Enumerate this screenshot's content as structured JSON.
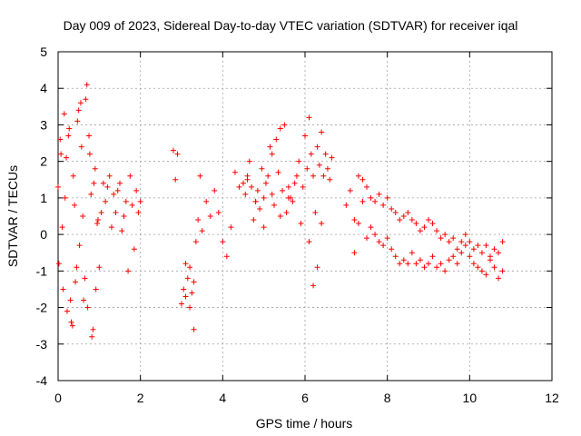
{
  "chart_data": {
    "type": "scatter",
    "title": "Day 009 of 2023, Sidereal Day-to-day VTEC variation (SDTVAR) for receiver iqal",
    "xlabel": "GPS time / hours",
    "ylabel": "SDTVAR / TECUs",
    "xlim": [
      0,
      12
    ],
    "ylim": [
      -4,
      5
    ],
    "x_ticks": [
      "0",
      "2",
      "4",
      "6",
      "8",
      "10",
      "12"
    ],
    "y_ticks": [
      "-4",
      "-3",
      "-2",
      "-1",
      "0",
      "1",
      "2",
      "3",
      "4",
      "5"
    ],
    "grid": true,
    "marker": "+",
    "series_color": "#ff0000",
    "series": [
      {
        "name": "SDTVAR",
        "x": [
          0.0,
          0.05,
          0.1,
          0.15,
          0.2,
          0.25,
          0.3,
          0.35,
          0.4,
          0.45,
          0.5,
          0.55,
          0.6,
          0.65,
          0.7,
          0.75,
          0.8,
          0.85,
          0.9,
          0.95,
          1.0,
          1.05,
          1.1,
          1.15,
          1.2,
          1.25,
          1.3,
          1.35,
          1.4,
          1.45,
          1.5,
          1.55,
          1.6,
          1.65,
          1.7,
          1.75,
          1.8,
          1.85,
          1.9,
          1.95,
          2.0,
          0.02,
          0.07,
          0.12,
          0.17,
          0.22,
          0.27,
          0.32,
          0.37,
          0.42,
          0.47,
          0.52,
          0.57,
          0.62,
          0.67,
          0.72,
          0.77,
          0.82,
          0.87,
          0.92,
          0.97,
          2.8,
          2.85,
          2.9,
          3.0,
          3.05,
          3.1,
          3.15,
          3.2,
          3.25,
          3.3,
          3.35,
          3.4,
          3.45,
          3.5,
          3.6,
          3.7,
          3.8,
          3.9,
          4.0,
          4.1,
          4.2,
          4.3,
          4.4,
          4.5,
          4.55,
          4.6,
          4.65,
          4.7,
          4.75,
          4.8,
          4.85,
          4.9,
          4.95,
          5.0,
          5.05,
          5.1,
          5.15,
          5.2,
          5.25,
          5.3,
          5.35,
          5.4,
          5.45,
          5.5,
          5.55,
          5.6,
          5.65,
          5.7,
          5.75,
          5.8,
          5.85,
          5.9,
          5.95,
          6.0,
          6.05,
          6.1,
          6.15,
          6.2,
          6.25,
          6.3,
          6.35,
          6.4,
          6.45,
          6.5,
          6.55,
          6.6,
          6.65,
          3.1,
          3.2,
          3.3,
          4.6,
          4.8,
          5.0,
          5.2,
          5.4,
          5.6,
          6.1,
          6.2,
          6.3,
          6.4,
          7.0,
          7.1,
          7.2,
          7.3,
          7.4,
          7.5,
          7.6,
          7.7,
          7.8,
          7.9,
          8.0,
          8.1,
          8.2,
          8.3,
          8.4,
          8.5,
          8.6,
          8.7,
          8.8,
          8.9,
          9.0,
          9.1,
          9.2,
          9.3,
          9.4,
          9.5,
          9.6,
          9.7,
          9.8,
          9.9,
          10.0,
          10.1,
          10.2,
          10.3,
          10.4,
          10.5,
          10.6,
          10.7,
          10.8,
          7.2,
          7.3,
          7.4,
          7.5,
          7.6,
          7.7,
          7.8,
          7.9,
          8.0,
          8.1,
          8.2,
          8.3,
          8.4,
          8.5,
          8.6,
          8.7,
          8.8,
          8.9,
          9.0,
          9.1,
          9.2,
          9.3,
          9.4,
          9.5,
          9.6,
          9.7,
          9.8,
          9.9,
          10.0,
          10.1,
          10.2,
          10.3,
          10.4,
          10.5,
          10.6,
          10.7,
          10.8
        ],
        "y": [
          1.3,
          2.6,
          0.2,
          3.3,
          2.1,
          2.7,
          -1.8,
          -2.5,
          0.8,
          -0.9,
          3.4,
          3.6,
          0.5,
          -1.2,
          4.1,
          2.7,
          1.1,
          -2.6,
          1.8,
          0.3,
          -0.9,
          0.6,
          1.4,
          0.9,
          1.3,
          1.6,
          0.2,
          1.1,
          0.6,
          1.2,
          1.4,
          0.1,
          0.5,
          0.9,
          -1.0,
          1.6,
          0.8,
          -0.4,
          1.2,
          0.6,
          0.9,
          -0.8,
          2.2,
          -1.5,
          1.0,
          -2.1,
          2.9,
          -2.4,
          1.6,
          -1.3,
          3.1,
          -0.3,
          2.4,
          -1.8,
          3.7,
          -2.0,
          2.2,
          -2.8,
          1.4,
          -1.5,
          0.4,
          2.3,
          1.5,
          2.2,
          -1.9,
          -1.5,
          -0.8,
          -1.2,
          -2.0,
          -1.6,
          -1.3,
          -0.2,
          0.4,
          1.6,
          0.1,
          0.9,
          0.5,
          1.2,
          0.6,
          -0.2,
          -0.6,
          0.2,
          1.7,
          1.3,
          1.4,
          1.1,
          1.5,
          2.0,
          1.3,
          0.4,
          0.9,
          1.2,
          0.7,
          1.8,
          1.0,
          1.4,
          1.6,
          2.4,
          1.1,
          0.8,
          2.6,
          1.7,
          2.9,
          1.2,
          3.0,
          0.6,
          1.3,
          1.0,
          0.9,
          1.4,
          1.6,
          2.0,
          0.3,
          1.3,
          2.7,
          1.8,
          3.2,
          2.2,
          1.6,
          0.6,
          2.4,
          1.9,
          2.8,
          1.6,
          2.2,
          1.8,
          1.5,
          2.1,
          -1.7,
          -0.9,
          -2.6,
          1.6,
          0.9,
          0.2,
          2.2,
          0.5,
          1.0,
          -0.2,
          -1.4,
          -0.9,
          0.3,
          0.8,
          1.2,
          0.4,
          1.6,
          1.5,
          1.3,
          1.0,
          0.9,
          1.1,
          0.8,
          1.0,
          0.7,
          0.6,
          0.4,
          0.5,
          0.6,
          0.4,
          0.3,
          0.1,
          0.2,
          0.4,
          0.3,
          0.1,
          -0.1,
          0.0,
          -0.2,
          -0.1,
          -0.4,
          -0.2,
          0.0,
          -0.2,
          -0.4,
          -0.3,
          -0.5,
          -0.3,
          -0.6,
          -0.4,
          -0.5,
          -0.2,
          -0.5,
          0.3,
          0.9,
          -0.1,
          0.2,
          0.0,
          -0.2,
          -0.3,
          -0.1,
          -0.4,
          -0.6,
          -0.8,
          -0.7,
          -0.8,
          -0.5,
          -0.8,
          -0.7,
          -0.9,
          -0.8,
          -0.6,
          -0.9,
          -0.8,
          -1.0,
          -0.7,
          -0.6,
          -0.8,
          -0.5,
          -0.3,
          -0.6,
          -0.8,
          -0.9,
          -1.0,
          -1.1,
          -0.7,
          -0.9,
          -1.2,
          -1.0
        ]
      }
    ]
  }
}
